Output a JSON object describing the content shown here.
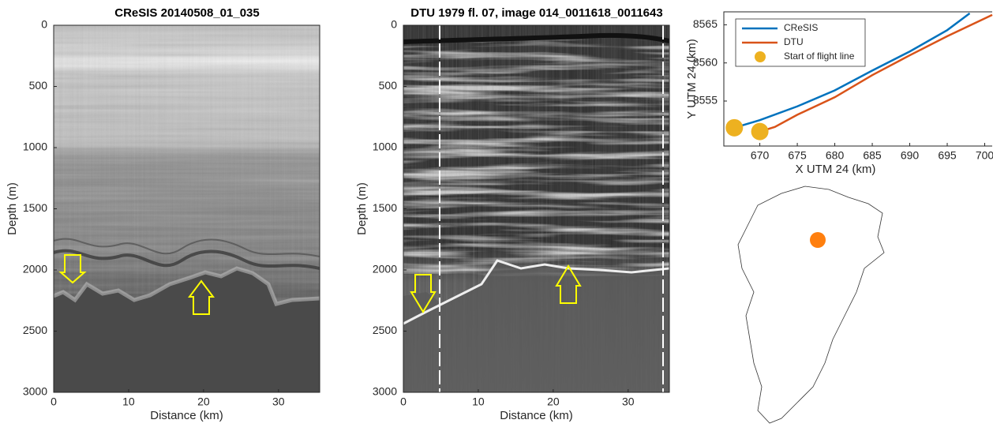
{
  "chart_data": [
    {
      "type": "radargram",
      "title": "CReSIS 20140508_01_035",
      "xlabel": "Distance (km)",
      "ylabel": "Depth (m)",
      "xlim": [
        0,
        35.5
      ],
      "xticks": [
        0,
        10,
        20,
        30
      ],
      "ylim": [
        3000,
        0
      ],
      "yticks": [
        0,
        500,
        1000,
        1500,
        2000,
        2500,
        3000
      ]
    },
    {
      "type": "radargram",
      "title": "DTU 1979 fl. 07, image 014_0011618_0011643",
      "xlabel": "Distance (km)",
      "ylabel": "Depth (m)",
      "xlim": [
        0,
        35.5
      ],
      "xticks": [
        0,
        10,
        20,
        30
      ],
      "ylim": [
        3000,
        0
      ],
      "yticks": [
        0,
        500,
        1000,
        1500,
        2000,
        2500,
        3000
      ]
    },
    {
      "type": "line",
      "xlabel": "X UTM 24 (km)",
      "ylabel": "Y UTM 24 (km)",
      "xlim": [
        665.2,
        701
      ],
      "xticks": [
        670,
        675,
        680,
        685,
        690,
        695,
        700
      ],
      "ylim": [
        8549.1,
        8566.7
      ],
      "yticks": [
        8555,
        8560,
        8565
      ],
      "series": [
        {
          "name": "CReSIS",
          "color": "#0072bd",
          "style": "line",
          "x": [
            666.6,
            670,
            675,
            680,
            685,
            690,
            695,
            698
          ],
          "values": [
            8551.5,
            8552.5,
            8554.3,
            8556.4,
            8559,
            8561.5,
            8564.3,
            8566.5
          ]
        },
        {
          "name": "DTU",
          "color": "#d95319",
          "style": "line",
          "x": [
            670,
            672,
            675,
            680,
            685,
            690,
            695,
            701
          ],
          "values": [
            8551,
            8551.6,
            8553.2,
            8555.5,
            8558.4,
            8561,
            8563.5,
            8566.3
          ]
        },
        {
          "name": "Start of flight line",
          "color": "#edb120",
          "style": "marker",
          "x": [
            666.6,
            670
          ],
          "values": [
            8551.5,
            8551
          ]
        }
      ]
    }
  ]
}
